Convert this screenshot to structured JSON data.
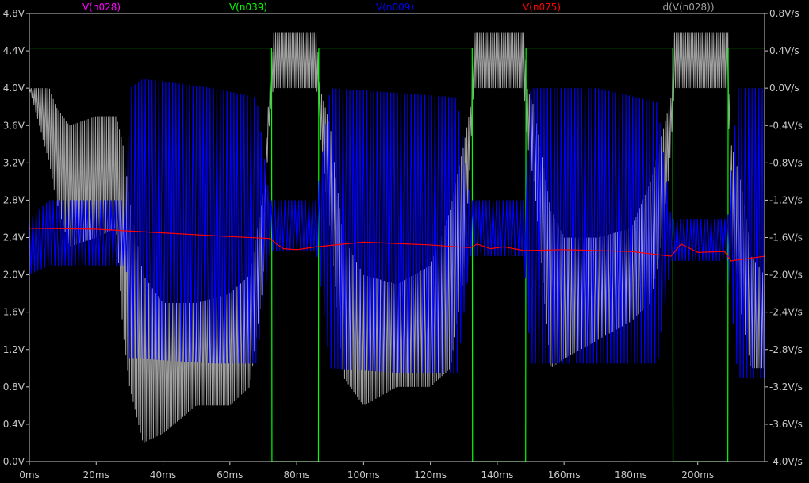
{
  "chart_data": {
    "type": "line",
    "title": "",
    "x_unit": "ms",
    "xlim": [
      0,
      220
    ],
    "ylim_left": [
      0.0,
      4.8
    ],
    "ylim_right": [
      -4.0,
      0.8
    ],
    "legend_position": "top",
    "grid": false,
    "x_ticks": [
      "0ms",
      "20ms",
      "40ms",
      "60ms",
      "80ms",
      "100ms",
      "120ms",
      "140ms",
      "160ms",
      "180ms",
      "200ms"
    ],
    "x_tick_values": [
      0,
      20,
      40,
      60,
      80,
      100,
      120,
      140,
      160,
      180,
      200
    ],
    "y_left_ticks": [
      "0.0V",
      "0.4V",
      "0.8V",
      "1.2V",
      "1.6V",
      "2.0V",
      "2.4V",
      "2.8V",
      "3.2V",
      "3.6V",
      "4.0V",
      "4.4V",
      "4.8V"
    ],
    "y_left_tick_values": [
      0.0,
      0.4,
      0.8,
      1.2,
      1.6,
      2.0,
      2.4,
      2.8,
      3.2,
      3.6,
      4.0,
      4.4,
      4.8
    ],
    "y_right_ticks": [
      "-4.0V/s",
      "-3.6V/s",
      "-3.2V/s",
      "-2.8V/s",
      "-2.4V/s",
      "-2.0V/s",
      "-1.6V/s",
      "-1.2V/s",
      "-0.8V/s",
      "-0.4V/s",
      "0.0V/s",
      "0.4V/s",
      "0.8V/s"
    ],
    "y_right_tick_values": [
      -4.0,
      -3.6,
      -3.2,
      -2.8,
      -2.4,
      -2.0,
      -1.6,
      -1.2,
      -0.8,
      -0.4,
      0.0,
      0.4,
      0.8
    ],
    "series": [
      {
        "name": "V(n028)",
        "color": "#ff00ff",
        "axis": "left",
        "x": [],
        "y": []
      },
      {
        "name": "V(n039)",
        "color": "#00ff00",
        "axis": "left",
        "x": [
          0,
          72.5,
          72.6,
          86.5,
          86.6,
          132.5,
          132.6,
          148.5,
          148.6,
          192.5,
          192.6,
          209,
          209.1,
          220
        ],
        "y": [
          4.43,
          4.43,
          0.0,
          0.0,
          4.43,
          4.43,
          0.0,
          0.0,
          4.43,
          4.43,
          0.0,
          0.0,
          4.43,
          4.43
        ]
      },
      {
        "name": "V(n009)",
        "color": "#0000ff",
        "axis": "left",
        "style": "oscillating",
        "x": [
          0,
          6,
          29,
          30,
          34,
          55,
          68,
          72,
          86,
          90,
          110,
          128,
          132,
          148,
          150,
          170,
          188,
          192,
          209,
          212,
          220
        ],
        "y_max": [
          2.6,
          2.8,
          2.8,
          4.0,
          4.1,
          4.0,
          3.9,
          2.8,
          2.8,
          4.0,
          3.95,
          3.9,
          2.8,
          2.8,
          4.0,
          4.0,
          3.85,
          2.6,
          2.6,
          4.0,
          4.0
        ],
        "y_min": [
          2.0,
          2.1,
          2.1,
          1.1,
          1.1,
          1.05,
          1.05,
          2.25,
          2.25,
          1.0,
          0.95,
          0.95,
          2.2,
          2.2,
          1.05,
          1.05,
          1.05,
          2.15,
          2.15,
          0.9,
          0.9
        ]
      },
      {
        "name": "V(n075)",
        "color": "#ff0000",
        "axis": "left",
        "x": [
          0,
          20,
          40,
          60,
          72,
          74,
          76,
          80,
          86,
          100,
          120,
          132,
          134,
          138,
          142,
          148,
          160,
          180,
          192,
          195,
          200,
          208,
          210,
          220
        ],
        "y": [
          2.5,
          2.49,
          2.45,
          2.41,
          2.39,
          2.33,
          2.28,
          2.27,
          2.3,
          2.35,
          2.32,
          2.29,
          2.33,
          2.28,
          2.3,
          2.26,
          2.27,
          2.25,
          2.2,
          2.33,
          2.24,
          2.25,
          2.15,
          2.2
        ]
      },
      {
        "name": "d(V(n028))",
        "color": "#a0a0a0",
        "axis": "right",
        "style": "band",
        "x": [
          0,
          6,
          8,
          12,
          20,
          26,
          28,
          30,
          34,
          40,
          50,
          60,
          66,
          70,
          71.5,
          73,
          86,
          87,
          90,
          94,
          100,
          110,
          120,
          126,
          130,
          132,
          133,
          148,
          149,
          151,
          156,
          160,
          170,
          180,
          186,
          190,
          192,
          193,
          209,
          210,
          213,
          216,
          220
        ],
        "y_max": [
          0.0,
          0.0,
          -0.2,
          -0.4,
          -0.3,
          -0.3,
          -0.6,
          -1.2,
          -2.0,
          -2.3,
          -2.3,
          -2.2,
          -2.0,
          -1.1,
          -0.2,
          0.6,
          0.6,
          0.0,
          -0.4,
          -1.6,
          -2.0,
          -2.1,
          -1.9,
          -1.3,
          -0.6,
          -0.2,
          0.6,
          0.6,
          0.0,
          -0.2,
          -1.3,
          -1.6,
          -1.6,
          -1.5,
          -1.0,
          -0.4,
          -0.1,
          0.6,
          0.6,
          -0.6,
          -1.0,
          -1.8,
          -2.0
        ],
        "y_min": [
          0.0,
          -0.8,
          -1.2,
          -1.7,
          -1.6,
          -1.5,
          -2.6,
          -3.2,
          -3.8,
          -3.7,
          -3.4,
          -3.4,
          -3.2,
          -2.1,
          -0.5,
          0.0,
          0.0,
          -0.5,
          -1.5,
          -3.1,
          -3.4,
          -3.2,
          -3.2,
          -3.0,
          -2.0,
          -0.7,
          0.0,
          0.0,
          -0.6,
          -1.0,
          -3.0,
          -2.9,
          -2.7,
          -2.5,
          -2.3,
          -1.5,
          -0.6,
          0.0,
          0.0,
          -1.6,
          -2.4,
          -3.0,
          -3.0
        ]
      }
    ]
  }
}
